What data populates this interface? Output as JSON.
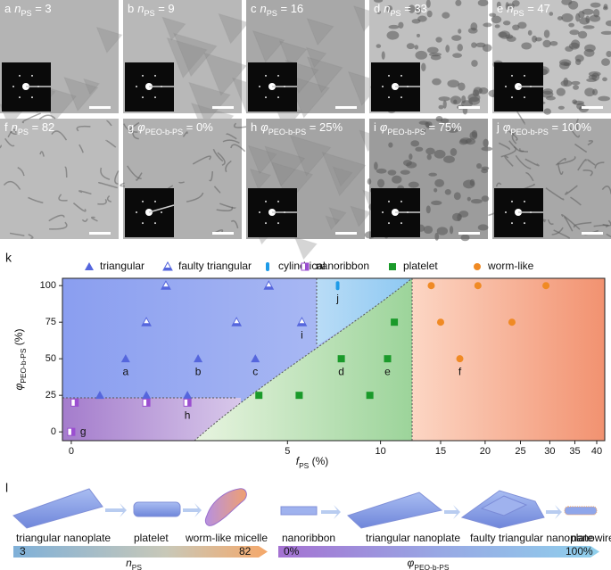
{
  "panels": [
    {
      "letter": "a",
      "symbol": "n",
      "subscript": "PS",
      "rest": " = 3"
    },
    {
      "letter": "b",
      "symbol": "n",
      "subscript": "PS",
      "rest": " = 9"
    },
    {
      "letter": "c",
      "symbol": "n",
      "subscript": "PS",
      "rest": " = 16"
    },
    {
      "letter": "d",
      "symbol": "n",
      "subscript": "PS",
      "rest": " = 33"
    },
    {
      "letter": "e",
      "symbol": "n",
      "subscript": "PS",
      "rest": " = 47"
    },
    {
      "letter": "f",
      "symbol": "n",
      "subscript": "PS",
      "rest": " = 82"
    },
    {
      "letter": "g",
      "symbol": "φ",
      "subscript": "PEO-b-PS",
      "rest": " = 0%"
    },
    {
      "letter": "h",
      "symbol": "φ",
      "subscript": "PEO-b-PS",
      "rest": " = 25%"
    },
    {
      "letter": "i",
      "symbol": "φ",
      "subscript": "PEO-b-PS",
      "rest": " = 75%"
    },
    {
      "letter": "j",
      "symbol": "φ",
      "subscript": "PEO-b-PS",
      "rest": " = 100%"
    }
  ],
  "chart_data": {
    "type": "scatter",
    "panel_letter": "k",
    "xlabel": {
      "symbol": "f",
      "subscript": "PS",
      "unit": " (%)"
    },
    "ylabel": {
      "symbol": "φ",
      "subscript": "PEO-b-PS",
      "unit": " (%)"
    },
    "xscale": "symlog",
    "xlim": [
      -0.1,
      42
    ],
    "ylim": [
      -6,
      105
    ],
    "xticks": [
      0,
      5,
      10,
      15,
      20,
      25,
      30,
      35,
      40
    ],
    "yticks": [
      0,
      25,
      50,
      75,
      100
    ],
    "series": [
      {
        "name": "triangular",
        "marker": "triangle",
        "color": "#5566dd",
        "x": [
          0.36,
          1.09,
          1.92,
          0.74,
          2.17,
          3.81
        ],
        "values": [
          25,
          25,
          25,
          50,
          50,
          50
        ],
        "labels": [
          null,
          null,
          null,
          "a",
          "b",
          "c"
        ]
      },
      {
        "name": "faulty triangular",
        "marker": "half-triangle",
        "color": "#5566dd",
        "x": [
          1.09,
          3.21,
          5.61,
          1.46,
          4.28
        ],
        "values": [
          75,
          75,
          75,
          100,
          100
        ],
        "labels": [
          null,
          null,
          "i",
          null,
          null
        ]
      },
      {
        "name": "cylindrical",
        "marker": "rod",
        "color": "#1e9be8",
        "x": [
          7.36
        ],
        "values": [
          100
        ],
        "labels": [
          "j"
        ]
      },
      {
        "name": "nanoribbon",
        "marker": "half-square",
        "color": "#9b4fd0",
        "x": [
          0,
          0.04,
          1.09,
          1.92
        ],
        "values": [
          0,
          20,
          20,
          20
        ],
        "labels": [
          "g",
          null,
          null,
          "h"
        ]
      },
      {
        "name": "platelet",
        "marker": "square",
        "color": "#1a9a2a",
        "x": [
          3.93,
          5.49,
          9.28,
          7.56,
          10.5,
          11.0
        ],
        "values": [
          25,
          25,
          25,
          50,
          50,
          75
        ],
        "labels": [
          null,
          null,
          null,
          "d",
          "e",
          null
        ]
      },
      {
        "name": "worm-like",
        "marker": "circle",
        "color": "#f08a24",
        "x": [
          17.0,
          15.0,
          23.7,
          14.1,
          19.1,
          29.3
        ],
        "values": [
          50,
          75,
          75,
          100,
          100,
          100
        ],
        "labels": [
          "f",
          null,
          null,
          null,
          null,
          null
        ]
      }
    ]
  },
  "schematic": {
    "panel_letter": "l",
    "left": {
      "stages": [
        "triangular nanoplate",
        "platelet",
        "worm-like micelle"
      ],
      "start": 3,
      "end": 82,
      "axis": {
        "symbol": "n",
        "subscript": "PS"
      }
    },
    "right": {
      "stages": [
        "nanoribbon",
        "triangular nanoplate",
        "faulty triangular nanoplate",
        "nanowire"
      ],
      "start": "0%",
      "end": "100%",
      "axis": {
        "symbol": "φ",
        "subscript": "PEO-b-PS"
      }
    }
  }
}
